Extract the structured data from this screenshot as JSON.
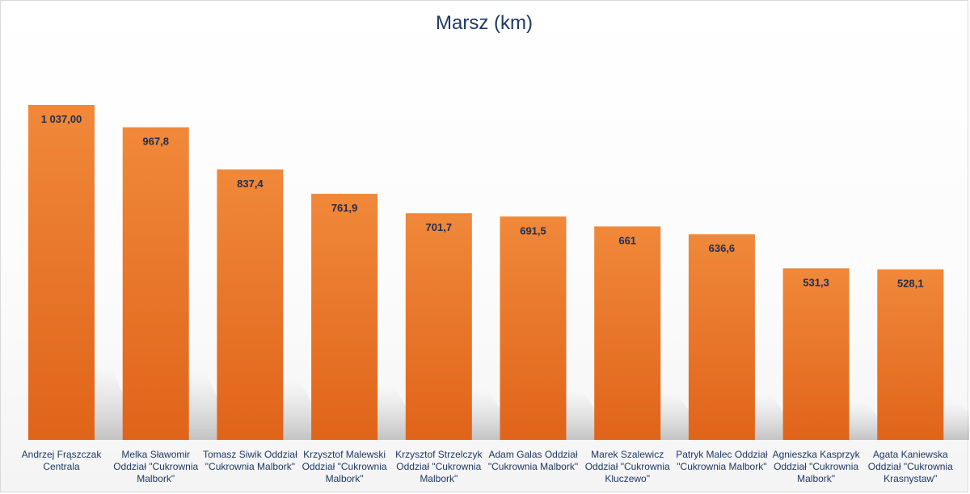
{
  "chart_data": {
    "type": "bar",
    "title": "Marsz (km)",
    "xlabel": "",
    "ylabel": "",
    "ylim": [
      0,
      1150
    ],
    "grid": false,
    "legend": "none",
    "categories": [
      "Andrzej Frąszczak Centrala",
      "Melka Sławomir Oddział \"Cukrownia Malbork\"",
      "Tomasz Siwik Oddział \"Cukrownia Malbork\"",
      "Krzysztof Malewski Oddział \"Cukrownia Malbork\"",
      "Krzysztof Strzelczyk Oddział \"Cukrownia Malbork\"",
      "Adam Galas Oddział \"Cukrownia Malbork\"",
      "Marek Szalewicz Oddział \"Cukrownia Kluczewo\"",
      "Patryk Malec Oddział \"Cukrownia Malbork\"",
      "Agnieszka Kasprzyk Oddział \"Cukrownia Malbork\"",
      "Agata Kaniewska Oddział \"Cukrownia Krasnystaw\""
    ],
    "values": [
      1037.0,
      967.8,
      837.4,
      761.9,
      701.7,
      691.5,
      661,
      636.6,
      531.3,
      528.1
    ],
    "data_labels": [
      "1 037,00",
      "967,8",
      "837,4",
      "761,9",
      "701,7",
      "691,5",
      "661",
      "636,6",
      "531,3",
      "528,1"
    ],
    "colors": {
      "bar_top": "#f0883a",
      "bar_bottom": "#e0641a",
      "label": "#1f2d4f"
    }
  }
}
